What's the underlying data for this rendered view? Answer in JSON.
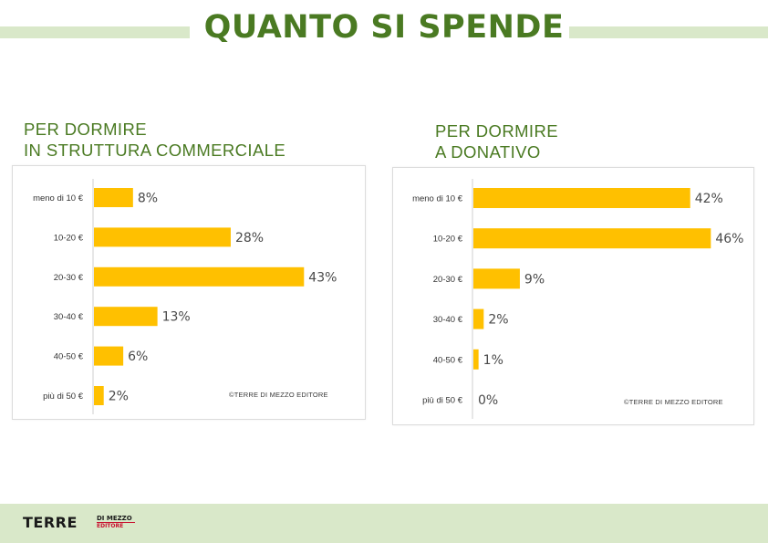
{
  "page": {
    "title": "QUANTO SI SPENDE",
    "credit": "©TERRE DI MEZZO EDITORE",
    "logo": {
      "main": "TERRE",
      "sub_top": "DI MEZZO",
      "sub_bottom": "EDITORE"
    }
  },
  "colors": {
    "bar": "#ffc000",
    "title_green": "#4a7a22",
    "band": "#d9e8c9",
    "logo_red": "#c8102e"
  },
  "chart_data": [
    {
      "type": "bar",
      "orientation": "horizontal",
      "title_lines": [
        "PER DORMIRE",
        "IN STRUTTURA COMMERCIALE"
      ],
      "categories": [
        "meno di 10 €",
        "10-20 €",
        "20-30 €",
        "30-40 €",
        "40-50 €",
        "più di 50 €"
      ],
      "values": [
        8,
        28,
        43,
        13,
        6,
        2
      ],
      "unit": "%",
      "xlim": [
        0,
        45
      ],
      "grid": false,
      "legend": "none"
    },
    {
      "type": "bar",
      "orientation": "horizontal",
      "title_lines": [
        "PER DORMIRE",
        "A DONATIVO"
      ],
      "categories": [
        "meno di 10 €",
        "10-20 €",
        "20-30 €",
        "30-40 €",
        "40-50 €",
        "più di 50 €"
      ],
      "values": [
        42,
        46,
        9,
        2,
        1,
        0
      ],
      "unit": "%",
      "xlim": [
        0,
        47
      ],
      "grid": false,
      "legend": "none"
    }
  ]
}
